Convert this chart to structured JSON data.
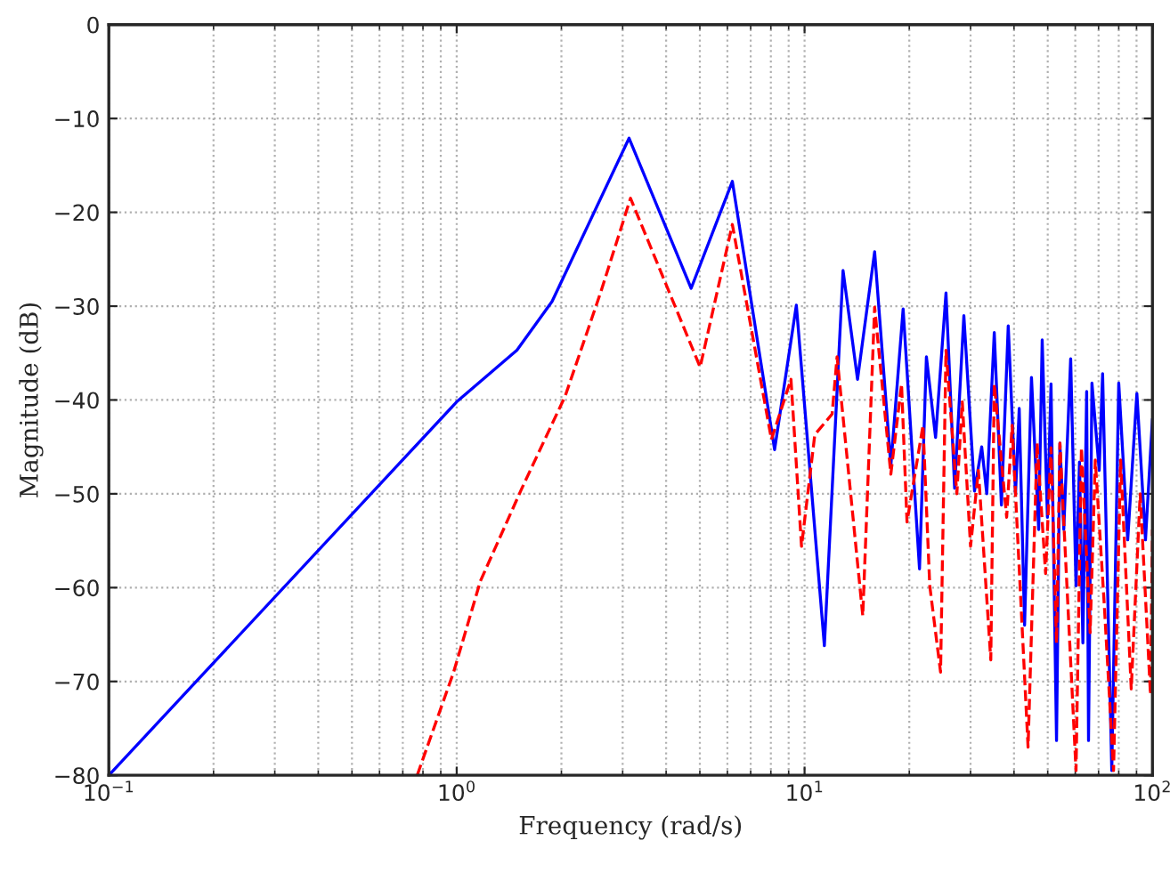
{
  "chart_data": {
    "type": "line",
    "xlabel": "Frequency (rad/s)",
    "ylabel": "Magnitude (dB)",
    "log": "x",
    "xlim": [
      0.1,
      100
    ],
    "xticks": [
      {
        "value": 0.1,
        "label": "10$^{−1}$"
      },
      {
        "value": 1,
        "label": "10$^{0}$"
      },
      {
        "value": 10,
        "label": "10$^{1}$"
      },
      {
        "value": 100,
        "label": "10$^{2}$"
      }
    ],
    "ylim": [
      -80,
      0
    ],
    "yticks": [
      -80,
      -70,
      -60,
      -50,
      -40,
      -30,
      -20,
      -10,
      0
    ],
    "grid": true,
    "series": [
      {
        "color": "#0000ff",
        "line_style": "solid",
        "x": [
          0.1,
          1.0,
          1.49,
          1.88,
          3.13,
          4.72,
          6.2,
          8.2,
          9.47,
          11.4,
          12.9,
          14.2,
          15.9,
          17.7,
          19.2,
          21.4,
          22.4,
          23.8,
          25.5,
          27,
          28.7,
          30.8,
          32.3,
          33.4,
          35.1,
          36.8,
          38.5,
          40.4,
          41.4,
          42.9,
          44.9,
          47.1,
          48.2,
          49.9,
          51.1,
          53,
          54.2,
          55.6,
          58.2,
          60.3,
          61.7,
          63.1,
          64.7,
          65.5,
          67,
          70.3,
          71.9,
          76.4,
          80,
          84.9,
          90.2,
          95.5,
          100
        ],
        "values": [
          -80,
          -40.2,
          -34.7,
          -29.5,
          -12.1,
          -28.1,
          -16.7,
          -45.3,
          -29.9,
          -66.2,
          -26.2,
          -37.8,
          -24.2,
          -47.0,
          -30.3,
          -58,
          -35.4,
          -44,
          -28.6,
          -49.4,
          -31,
          -49.7,
          -45,
          -50,
          -32.8,
          -51.2,
          -32.1,
          -50,
          -40.9,
          -64,
          -37.6,
          -53.8,
          -33.6,
          -52.5,
          -38.3,
          -76.3,
          -44.6,
          -53.8,
          -35.6,
          -59.8,
          -46.6,
          -65.9,
          -39.1,
          -76.3,
          -38.2,
          -47.5,
          -37.2,
          -79.5,
          -38.2,
          -54.9,
          -39.3,
          -54.9,
          -42
        ]
      },
      {
        "color": "#ff0000",
        "line_style": "dashed",
        "x": [
          0.77,
          0.98,
          1.17,
          1.54,
          2.05,
          2.59,
          3.16,
          5.01,
          6.2,
          8.03,
          9.14,
          9.8,
          10.7,
          12.0,
          12.4,
          14.7,
          15.9,
          17.7,
          19.0,
          19.7,
          21.9,
          22.9,
          24.6,
          25.5,
          27.4,
          28.4,
          30,
          31.6,
          34.3,
          35.1,
          38.1,
          39.5,
          43.9,
          46.6,
          49.3,
          51.1,
          53,
          54.2,
          60.3,
          62.5,
          66.2,
          68.5,
          72.8,
          77.3,
          81,
          86.9,
          92.2,
          98.7,
          100
        ],
        "values": [
          -80,
          -69,
          -59.3,
          -49.4,
          -39.6,
          -28.6,
          -18.5,
          -36.5,
          -21.3,
          -44.2,
          -37.8,
          -55.6,
          -43.7,
          -41.5,
          -35.4,
          -63,
          -30.1,
          -47.9,
          -38.3,
          -53,
          -42.7,
          -59.8,
          -69,
          -34.7,
          -50,
          -40.2,
          -55.6,
          -47.5,
          -67.7,
          -38.3,
          -52.5,
          -42.7,
          -77,
          -44.6,
          -58.5,
          -45.1,
          -65.9,
          -44.6,
          -79.5,
          -45.1,
          -64.8,
          -46.4,
          -62.2,
          -79.5,
          -46.4,
          -70.8,
          -50,
          -71.4,
          -53.8
        ]
      }
    ]
  }
}
